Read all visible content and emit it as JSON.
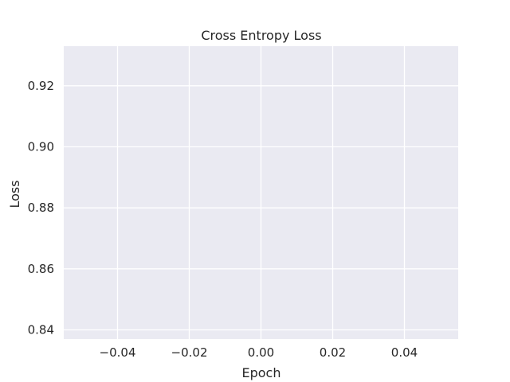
{
  "chart_data": {
    "type": "line",
    "title": "Cross Entropy Loss",
    "xlabel": "Epoch",
    "ylabel": "Loss",
    "xlim": [
      -0.055,
      0.055
    ],
    "ylim": [
      0.837,
      0.933
    ],
    "xticks": [
      -0.04,
      -0.02,
      0.0,
      0.02,
      0.04
    ],
    "xtick_labels": [
      "−0.04",
      "−0.02",
      "0.00",
      "0.02",
      "0.04"
    ],
    "yticks": [
      0.84,
      0.86,
      0.88,
      0.9,
      0.92
    ],
    "ytick_labels": [
      "0.84",
      "0.86",
      "0.88",
      "0.90",
      "0.92"
    ],
    "series": [],
    "grid": true,
    "colors": {
      "plot_background": "#EAEAF2",
      "grid": "#FFFFFF",
      "text": "#262626"
    }
  }
}
